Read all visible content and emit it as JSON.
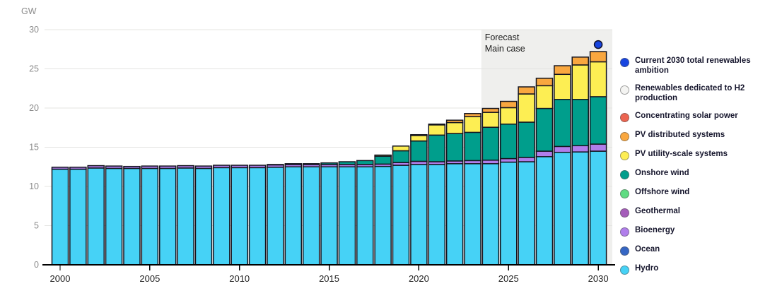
{
  "unit_label": "GW",
  "forecast_annotation": {
    "line1": "Forecast",
    "line2": "Main case"
  },
  "legend": {
    "position": "right",
    "items": [
      {
        "id": "ambition",
        "label": "Current 2030 total renewables ambition",
        "color": "#1845E0"
      },
      {
        "id": "h2",
        "label": "Renewables dedicated to H2 production",
        "color": "#F4F4F2"
      },
      {
        "id": "csp",
        "label": "Concentrating solar power",
        "color": "#EC6450"
      },
      {
        "id": "pv-dist",
        "label": "PV distributed systems",
        "color": "#F9A73F"
      },
      {
        "id": "pv-utility",
        "label": "PV utility-scale systems",
        "color": "#FDEE53"
      },
      {
        "id": "onshore",
        "label": "Onshore wind",
        "color": "#009E8C"
      },
      {
        "id": "offshore",
        "label": "Offshore wind",
        "color": "#5FDC82"
      },
      {
        "id": "geothermal",
        "label": "Geothermal",
        "color": "#A55CBA"
      },
      {
        "id": "bioenergy",
        "label": "Bioenergy",
        "color": "#B07EEB"
      },
      {
        "id": "ocean",
        "label": "Ocean",
        "color": "#3566C4"
      },
      {
        "id": "hydro",
        "label": "Hydro",
        "color": "#46D2F6"
      }
    ]
  },
  "chart_data": {
    "type": "bar",
    "subtype": "stacked",
    "title": "",
    "xlabel": "",
    "ylabel": "GW",
    "ylim": [
      0,
      30
    ],
    "yticks": [
      0,
      5,
      10,
      15,
      20,
      25,
      30
    ],
    "xtick_labels": [
      2000,
      2005,
      2010,
      2015,
      2020,
      2025,
      2030
    ],
    "grid": true,
    "x": [
      2000,
      2001,
      2002,
      2003,
      2004,
      2005,
      2006,
      2007,
      2008,
      2009,
      2010,
      2011,
      2012,
      2013,
      2014,
      2015,
      2016,
      2017,
      2018,
      2019,
      2020,
      2021,
      2022,
      2023,
      2024,
      2025,
      2026,
      2027,
      2028,
      2029,
      2030
    ],
    "forecast": {
      "start_year": 2024,
      "end_year": 2030,
      "background_color": "#EFEFED"
    },
    "series": [
      {
        "name": "Hydro",
        "color": "#46D2F6",
        "values": [
          12.2,
          12.2,
          12.35,
          12.3,
          12.3,
          12.3,
          12.3,
          12.35,
          12.3,
          12.4,
          12.4,
          12.4,
          12.45,
          12.5,
          12.5,
          12.5,
          12.5,
          12.5,
          12.55,
          12.7,
          12.8,
          12.8,
          12.9,
          12.9,
          12.9,
          13.1,
          13.15,
          13.8,
          14.35,
          14.4,
          14.5
        ]
      },
      {
        "name": "Ocean",
        "color": "#3566C4",
        "values": [
          0,
          0,
          0,
          0,
          0,
          0,
          0,
          0,
          0,
          0,
          0,
          0,
          0,
          0,
          0,
          0,
          0,
          0,
          0,
          0,
          0,
          0,
          0,
          0,
          0,
          0,
          0,
          0,
          0,
          0,
          0
        ]
      },
      {
        "name": "Bioenergy",
        "color": "#B07EEB",
        "values": [
          0.25,
          0.25,
          0.3,
          0.3,
          0.25,
          0.3,
          0.3,
          0.3,
          0.3,
          0.3,
          0.3,
          0.3,
          0.3,
          0.3,
          0.3,
          0.3,
          0.3,
          0.3,
          0.3,
          0.35,
          0.4,
          0.35,
          0.35,
          0.4,
          0.45,
          0.45,
          0.55,
          0.7,
          0.75,
          0.8,
          0.9
        ]
      },
      {
        "name": "Geothermal",
        "color": "#A55CBA",
        "values": [
          0,
          0,
          0,
          0,
          0,
          0,
          0,
          0,
          0,
          0,
          0,
          0,
          0,
          0,
          0,
          0,
          0,
          0,
          0,
          0,
          0,
          0,
          0,
          0,
          0,
          0,
          0,
          0,
          0,
          0,
          0
        ]
      },
      {
        "name": "Offshore wind",
        "color": "#5FDC82",
        "values": [
          0,
          0,
          0,
          0,
          0,
          0,
          0,
          0,
          0,
          0,
          0,
          0,
          0,
          0,
          0,
          0,
          0,
          0,
          0,
          0,
          0,
          0,
          0,
          0,
          0,
          0,
          0,
          0,
          0,
          0,
          0
        ]
      },
      {
        "name": "Onshore wind",
        "color": "#009E8C",
        "values": [
          0,
          0,
          0,
          0,
          0,
          0,
          0,
          0,
          0,
          0,
          0,
          0,
          0.05,
          0.1,
          0.1,
          0.2,
          0.35,
          0.5,
          1.0,
          1.5,
          2.6,
          3.4,
          3.5,
          3.6,
          4.2,
          4.4,
          4.5,
          5.45,
          6.0,
          5.9,
          6.05
        ]
      },
      {
        "name": "PV utility-scale systems",
        "color": "#FDEE53",
        "values": [
          0,
          0,
          0,
          0,
          0,
          0,
          0,
          0,
          0,
          0,
          0,
          0,
          0,
          0,
          0,
          0,
          0,
          0,
          0.15,
          0.6,
          0.7,
          1.3,
          1.4,
          2.0,
          1.9,
          2.1,
          3.6,
          2.9,
          3.2,
          4.4,
          4.45
        ]
      },
      {
        "name": "PV distributed systems",
        "color": "#F9A73F",
        "values": [
          0,
          0,
          0,
          0,
          0,
          0,
          0,
          0,
          0,
          0,
          0,
          0,
          0,
          0,
          0,
          0,
          0,
          0,
          0,
          0,
          0.1,
          0.1,
          0.3,
          0.4,
          0.5,
          0.8,
          0.9,
          0.95,
          1.1,
          1.0,
          1.3
        ]
      },
      {
        "name": "Concentrating solar power",
        "color": "#EC6450",
        "values": [
          0,
          0,
          0,
          0,
          0,
          0,
          0,
          0,
          0,
          0,
          0,
          0,
          0,
          0,
          0,
          0,
          0,
          0,
          0,
          0,
          0,
          0,
          0,
          0,
          0,
          0,
          0,
          0,
          0,
          0,
          0
        ]
      },
      {
        "name": "Renewables dedicated to H2 production",
        "color": "#F4F4F2",
        "values": [
          0,
          0,
          0,
          0,
          0,
          0,
          0,
          0,
          0,
          0,
          0,
          0,
          0,
          0,
          0,
          0,
          0,
          0,
          0,
          0,
          0,
          0,
          0,
          0,
          0,
          0,
          0,
          0,
          0,
          0,
          0
        ]
      }
    ],
    "point_series": {
      "name": "Current 2030 total renewables ambition",
      "x": 2030,
      "y": 28.1,
      "color": "#1845E0"
    }
  },
  "style_colors": {
    "bar_outline": "#15151F",
    "gridline": "#E4E4E2",
    "axis_line": "#000000",
    "ytick_label": "#8C8C8C",
    "xtick_label": "#202020",
    "annotation_text": "#1C1C1C"
  }
}
